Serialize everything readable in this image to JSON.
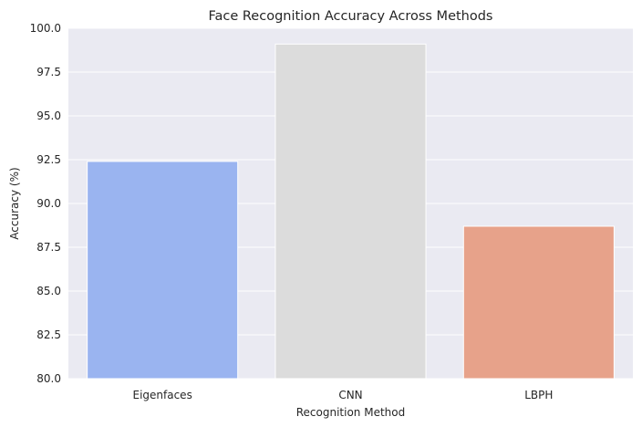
{
  "chart_data": {
    "type": "bar",
    "title": "Face Recognition Accuracy Across Methods",
    "xlabel": "Recognition Method",
    "ylabel": "Accuracy (%)",
    "categories": [
      "Eigenfaces",
      "CNN",
      "LBPH"
    ],
    "values": [
      92.4,
      99.1,
      88.7
    ],
    "colors": [
      "#9ab4f0",
      "#dcdcdc",
      "#e7a28a"
    ],
    "ylim": [
      80,
      100
    ],
    "yticks": [
      "80.0",
      "82.5",
      "85.0",
      "87.5",
      "90.0",
      "92.5",
      "95.0",
      "97.5",
      "100.0"
    ],
    "grid": true,
    "background": "#eaeaf2",
    "legend": "none"
  }
}
